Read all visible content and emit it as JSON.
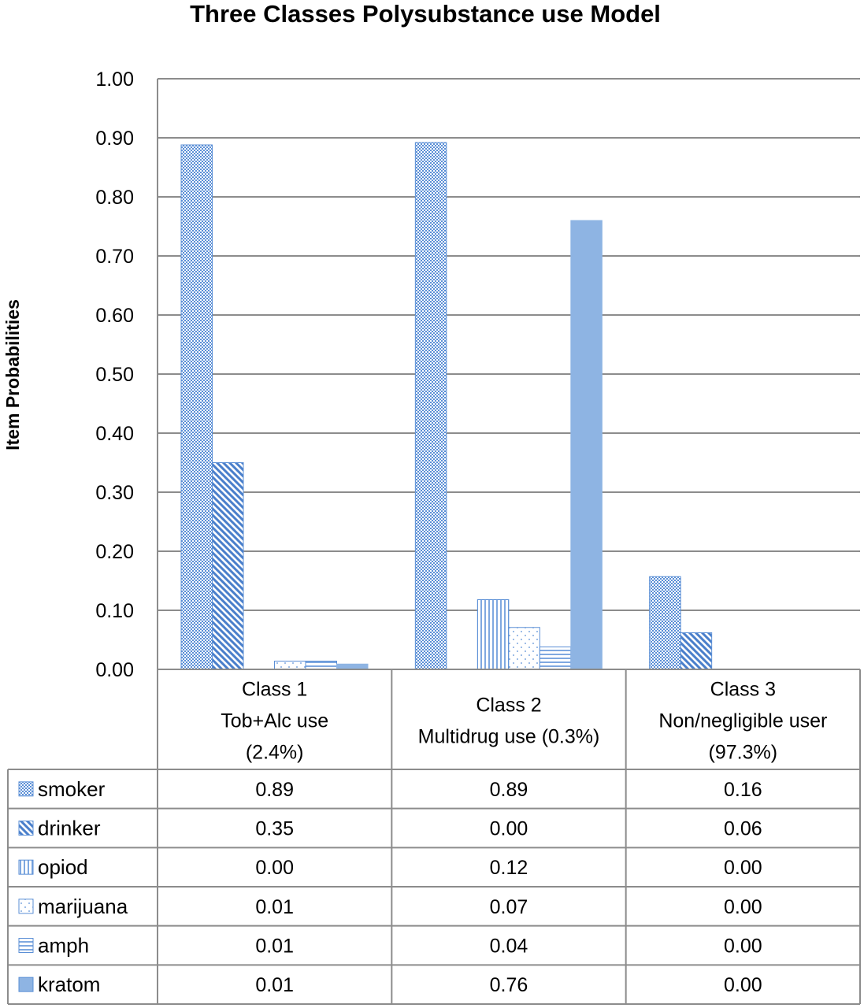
{
  "chart_data": {
    "type": "bar",
    "title": "Three Classes Polysubstance use Model",
    "xlabel": "",
    "ylabel": "Item Probabilities",
    "ylim": [
      0,
      1.0
    ],
    "yticks": [
      "0.00",
      "0.10",
      "0.20",
      "0.30",
      "0.40",
      "0.50",
      "0.60",
      "0.70",
      "0.80",
      "0.90",
      "1.00"
    ],
    "grid": true,
    "legend_placement": "data-table-left",
    "categories": [
      [
        "Class 1",
        "Tob+Alc use",
        "(2.4%)"
      ],
      [
        "Class 2",
        "Multidrug use (0.3%)"
      ],
      [
        "Class 3",
        "Non/negligible user",
        "(97.3%)"
      ]
    ],
    "series": [
      {
        "name": "smoker",
        "pattern": "checker",
        "values": [
          0.888,
          0.892,
          0.157
        ],
        "labels": [
          "0.89",
          "0.89",
          "0.16"
        ]
      },
      {
        "name": "drinker",
        "pattern": "diagonal",
        "values": [
          0.35,
          0.0,
          0.062
        ],
        "labels": [
          "0.35",
          "0.00",
          "0.06"
        ]
      },
      {
        "name": "opiod",
        "pattern": "vertical",
        "values": [
          0.0,
          0.118,
          0.0
        ],
        "labels": [
          "0.00",
          "0.12",
          "0.00"
        ]
      },
      {
        "name": "marijuana",
        "pattern": "dots",
        "values": [
          0.014,
          0.071,
          0.0
        ],
        "labels": [
          "0.01",
          "0.07",
          "0.00"
        ]
      },
      {
        "name": "amph",
        "pattern": "horizontal",
        "values": [
          0.014,
          0.038,
          0.0
        ],
        "labels": [
          "0.01",
          "0.04",
          "0.00"
        ]
      },
      {
        "name": "kratom",
        "pattern": "solid",
        "values": [
          0.009,
          0.76,
          0.0
        ],
        "labels": [
          "0.01",
          "0.76",
          "0.00"
        ]
      }
    ],
    "colors": {
      "bar": "#8eb4e3",
      "bar_dark": "#5b8fd6",
      "grid": "#8c8c8c"
    }
  }
}
